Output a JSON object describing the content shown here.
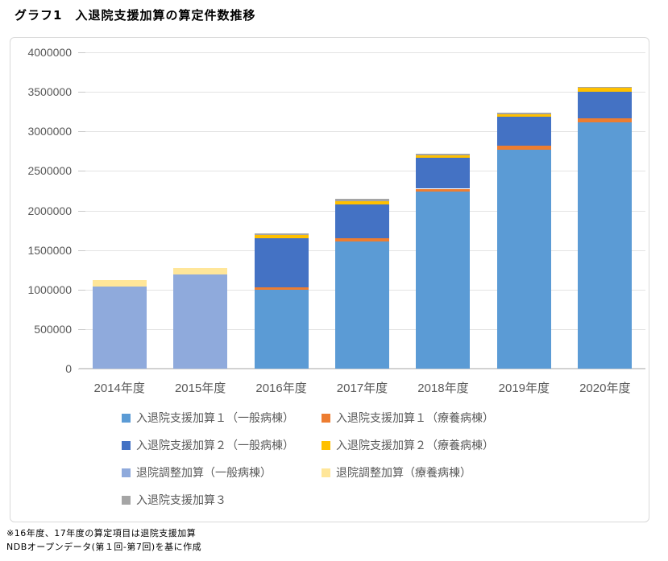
{
  "page": {
    "title": "グラフ1　入退院支援加算の算定件数推移"
  },
  "footnote": {
    "line1": "※16年度、17年度の算定項目は退院支援加算",
    "line2": "NDBオープンデータ(第１回-第7回)を基に作成"
  },
  "chart_data": {
    "type": "bar",
    "stacked": true,
    "title": "グラフ1　入退院支援加算の算定件数推移",
    "xlabel": "",
    "ylabel": "",
    "ylim": [
      0,
      4000000
    ],
    "ytick_step": 500000,
    "yticks": [
      "4000000",
      "3500000",
      "3000000",
      "2500000",
      "2000000",
      "1500000",
      "1000000",
      "500000",
      "0"
    ],
    "grid": true,
    "legend_position": "bottom",
    "legend_columns": 2,
    "categories": [
      "2014年度",
      "2015年度",
      "2016年度",
      "2017年度",
      "2018年度",
      "2019年度",
      "2020年度"
    ],
    "series": [
      {
        "name": "入退院支援加算１（一般病棟）",
        "color": "#5B9BD5",
        "values": [
          0,
          0,
          1000000,
          1610000,
          2235000,
          2770000,
          3115000
        ]
      },
      {
        "name": "入退院支援加算１（療養病棟）",
        "color": "#ED7D31",
        "values": [
          0,
          0,
          30000,
          40000,
          40000,
          45000,
          55000
        ]
      },
      {
        "name": "入退院支援加算２（一般病棟）",
        "color": "#4472C4",
        "values": [
          0,
          0,
          620000,
          430000,
          390000,
          375000,
          330000
        ]
      },
      {
        "name": "入退院支援加算２（療養病棟）",
        "color": "#FFC000",
        "values": [
          0,
          0,
          40000,
          40000,
          30000,
          30000,
          50000
        ]
      },
      {
        "name": "退院調整加算（一般病棟）",
        "color": "#8FAADC",
        "values": [
          1040000,
          1195000,
          0,
          0,
          0,
          0,
          0
        ]
      },
      {
        "name": "退院調整加算（療養病棟）",
        "color": "#FFE699",
        "values": [
          75000,
          75000,
          0,
          0,
          0,
          0,
          0
        ]
      },
      {
        "name": "入退院支援加算３",
        "color": "#A5A5A5",
        "values": [
          0,
          0,
          20000,
          25000,
          20000,
          15000,
          10000
        ]
      }
    ],
    "axis_label_color": "#595959",
    "gridline_color": "#e3e3e3"
  }
}
